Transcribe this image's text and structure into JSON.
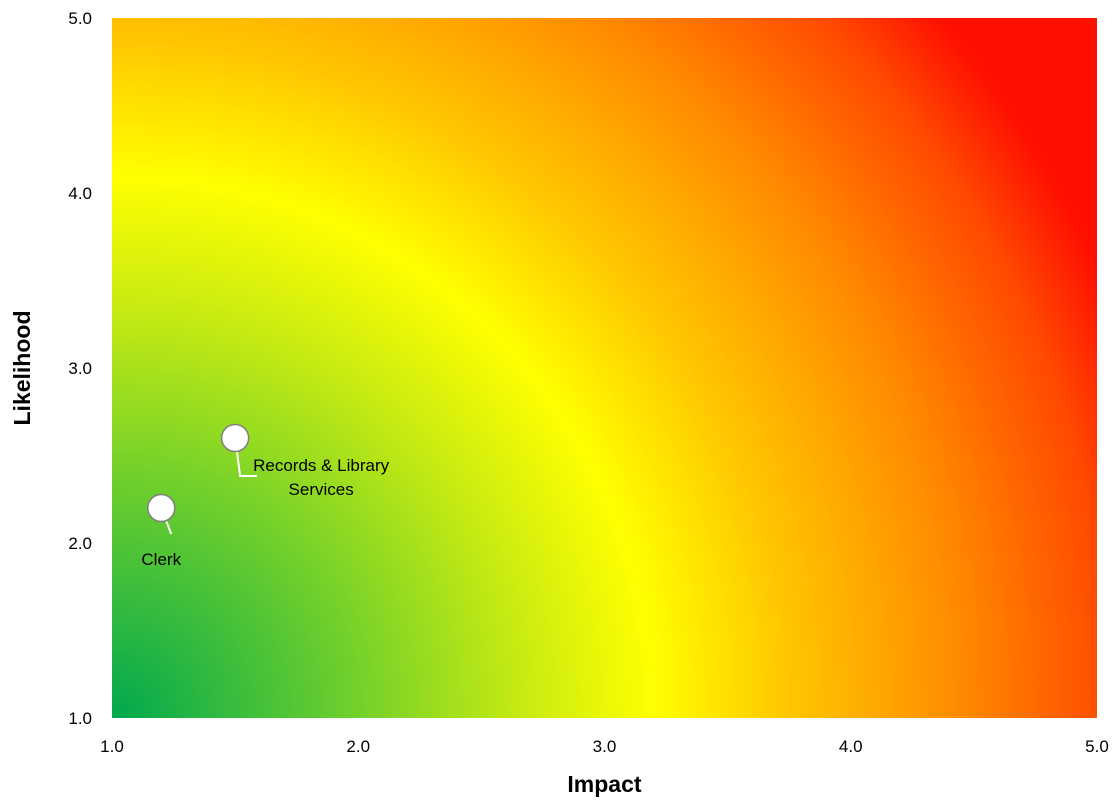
{
  "chart_data": {
    "type": "scatter",
    "title": "",
    "xlabel": "Impact",
    "ylabel": "Likelihood",
    "xlim": [
      1.0,
      5.0
    ],
    "ylim": [
      1.0,
      5.0
    ],
    "x_ticks": [
      "1.0",
      "2.0",
      "3.0",
      "4.0",
      "5.0"
    ],
    "y_ticks": [
      "1.0",
      "2.0",
      "3.0",
      "4.0",
      "5.0"
    ],
    "grid": false,
    "background": "risk heatmap gradient green (low) to yellow to red (high)",
    "colors": {
      "low": "#00a84f",
      "mid_low": "#7fd12a",
      "mid": "#ffff00",
      "mid_high": "#ffa500",
      "high": "#ff0000",
      "marker_fill": "#ffffff",
      "marker_stroke": "#7f7f7f"
    },
    "points": [
      {
        "label": "Clerk",
        "x": 1.2,
        "y": 2.2
      },
      {
        "label": "Records & Library Services",
        "x": 1.5,
        "y": 2.6
      }
    ]
  }
}
